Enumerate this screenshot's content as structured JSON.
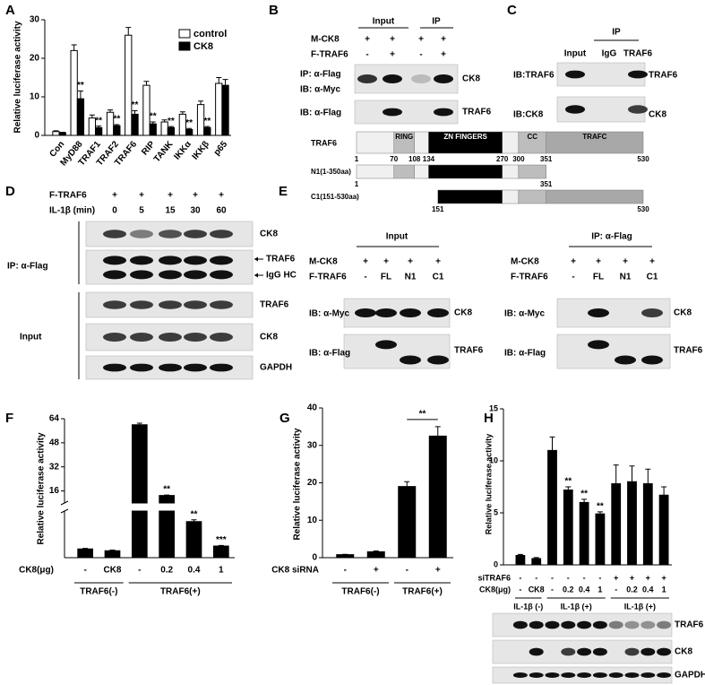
{
  "panel_labels": [
    "A",
    "B",
    "C",
    "D",
    "E",
    "F",
    "G",
    "H"
  ],
  "chart_data": [
    {
      "type": "bar",
      "ylabel": "Relative luciferase activity",
      "categories": [
        "Con",
        "MyD88",
        "TRAF1",
        "TRAF2",
        "TRAF6",
        "RIP",
        "TANK",
        "IKKα",
        "IKKβ",
        "p65"
      ],
      "series": [
        {
          "name": "control",
          "color": "#ffffff",
          "values": [
            1,
            22,
            4.5,
            6,
            26,
            13,
            3.5,
            5.5,
            8,
            13.5
          ],
          "errors": [
            0.2,
            1.5,
            0.8,
            0.6,
            2,
            1,
            0.5,
            0.6,
            0.9,
            1.5
          ]
        },
        {
          "name": "CK8",
          "color": "#000000",
          "values": [
            0.7,
            9.5,
            2,
            2.5,
            5.5,
            3,
            2,
            1.5,
            2,
            13
          ],
          "errors": [
            0.1,
            2,
            0.4,
            0.3,
            0.9,
            0.5,
            0.3,
            0.3,
            0.3,
            1.5
          ]
        }
      ],
      "significance": [
        null,
        "**",
        "**",
        "**",
        "**",
        "**",
        "**",
        "**",
        "**",
        null
      ],
      "ylim": [
        0,
        30
      ],
      "yticks": [
        0,
        10,
        20,
        30
      ],
      "legend": "upper right"
    },
    {
      "type": "bar",
      "ylabel": "Relative luciferase activity",
      "categories": [
        "-",
        "CK8",
        "-",
        "0.2",
        "0.4",
        "1"
      ],
      "category_label": "CK8(μg)",
      "groups": [
        {
          "name": "TRAF6(-)",
          "span": 2
        },
        {
          "name": "TRAF6(+)",
          "span": 4
        }
      ],
      "values": [
        1.5,
        1.2,
        60,
        13,
        6.2,
        2
      ],
      "errors": [
        0.1,
        0.1,
        1,
        0.3,
        0.3,
        0.1
      ],
      "significance": [
        null,
        null,
        null,
        "**",
        "**",
        "***"
      ],
      "color": "#000000",
      "ylim_lower": [
        0,
        8
      ],
      "ylim_upper": [
        8,
        64
      ],
      "yticks": [
        16,
        32,
        48,
        64
      ]
    },
    {
      "type": "bar",
      "ylabel": "Relative luciferase activity",
      "categories": [
        "-",
        "+",
        "-",
        "+"
      ],
      "category_label": "CK8 siRNA",
      "groups": [
        {
          "name": "TRAF6(-)",
          "span": 2
        },
        {
          "name": "TRAF6(+)",
          "span": 2
        }
      ],
      "values": [
        0.8,
        1.6,
        19,
        32.5
      ],
      "errors": [
        0.1,
        0.2,
        1.3,
        2.5
      ],
      "significance": [
        null,
        null,
        null,
        "**"
      ],
      "bracket": true,
      "color": "#000000",
      "ylim": [
        0,
        40
      ],
      "yticks": [
        0,
        10,
        20,
        30,
        40
      ]
    },
    {
      "type": "bar",
      "ylabel": "Relative luciferase activity",
      "categories": [
        "-",
        "CK8",
        "-",
        "0.2",
        "0.4",
        "1",
        "-",
        "0.2",
        "0.4",
        "1"
      ],
      "category_label": "CK8(μg)",
      "extra_rows": [
        {
          "label": "siTRAF6",
          "labels": [
            "-",
            "-",
            "-",
            "-",
            "-",
            "-",
            "+",
            "+",
            "+",
            "+"
          ]
        }
      ],
      "groups": [
        {
          "name": "IL-1β (-)",
          "span": 2
        },
        {
          "name": "IL-1β (+)",
          "span": 4
        },
        {
          "name": "IL-1β (+)",
          "span": 4
        }
      ],
      "values": [
        0.9,
        0.6,
        11,
        7.2,
        6,
        4.9,
        7.8,
        8,
        7.8,
        6.7
      ],
      "errors": [
        0.1,
        0.1,
        1.3,
        0.3,
        0.3,
        0.2,
        1.8,
        1.5,
        1.4,
        0.8
      ],
      "significance": [
        null,
        null,
        null,
        "**",
        "**",
        "**",
        null,
        null,
        null,
        null
      ],
      "color": "#000000",
      "ylim": [
        0,
        15
      ],
      "yticks": [
        0,
        5,
        10,
        15
      ],
      "blots": [
        "TRAF6",
        "CK8",
        "GAPDH"
      ]
    }
  ],
  "panel_b": {
    "header": [
      "Input",
      "IP"
    ],
    "rows": [
      {
        "label": "M-CK8",
        "marks": [
          "+",
          "+",
          "+",
          "+"
        ]
      },
      {
        "label": "F-TRAF6",
        "marks": [
          "-",
          "+",
          "-",
          "+"
        ]
      }
    ],
    "blots": [
      {
        "left": [
          "IP: α-Flag",
          "IB: α-Myc"
        ],
        "right": "CK8"
      },
      {
        "left": [
          "IB: α-Flag"
        ],
        "right": "TRAF6"
      }
    ]
  },
  "panel_c": {
    "header": "IP",
    "columns": [
      "Input",
      "IgG",
      "TRAF6"
    ],
    "blots": [
      {
        "left": "IB:TRAF6",
        "right": "TRAF6"
      },
      {
        "left": "IB:CK8",
        "right": "CK8"
      }
    ]
  },
  "panel_d": {
    "rows": [
      {
        "label": "F-TRAF6",
        "marks": [
          "+",
          "+",
          "+",
          "+",
          "+"
        ]
      },
      {
        "label": "IL-1β (min)",
        "marks": [
          "0",
          "5",
          "15",
          "30",
          "60"
        ]
      }
    ],
    "groups": [
      "IP: α-Flag",
      "Input"
    ],
    "blot_labels": [
      [
        "CK8"
      ],
      [
        "TRAF6",
        "IgG HC"
      ],
      [
        "TRAF6"
      ],
      [
        "CK8"
      ],
      [
        "GAPDH"
      ]
    ]
  },
  "panel_e": {
    "diagram": {
      "protein": "TRAF6",
      "positions": [
        1,
        70,
        108,
        134,
        270,
        300,
        351,
        530
      ],
      "segments": [
        null,
        "RING",
        null,
        "ZN FINGERS",
        null,
        "CC",
        "TRAFC"
      ],
      "constructs": [
        {
          "name": "N1(1-350aa)",
          "start": 1,
          "end": 351
        },
        {
          "name": "C1(151-530aa)",
          "start": 151,
          "end": 530
        }
      ]
    },
    "input": {
      "title": "Input",
      "rows": [
        {
          "label": "M-CK8",
          "marks": [
            "+",
            "+",
            "+",
            "+"
          ]
        },
        {
          "label": "F-TRAF6",
          "marks": [
            "-",
            "FL",
            "N1",
            "C1"
          ]
        }
      ],
      "blots": [
        {
          "left": "IB: α-Myc",
          "right": "CK8"
        },
        {
          "left": "IB: α-Flag",
          "right": "TRAF6"
        }
      ]
    },
    "ip": {
      "title": "IP: α-Flag",
      "rows": [
        {
          "label": "M-CK8",
          "marks": [
            "+",
            "+",
            "+",
            "+"
          ]
        },
        {
          "label": "F-TRAF6",
          "marks": [
            "-",
            "FL",
            "N1",
            "C1"
          ]
        }
      ],
      "blots": [
        {
          "left": "IB: α-Myc",
          "right": "CK8"
        },
        {
          "left": "IB: α-Flag",
          "right": "TRAF6"
        }
      ]
    }
  }
}
